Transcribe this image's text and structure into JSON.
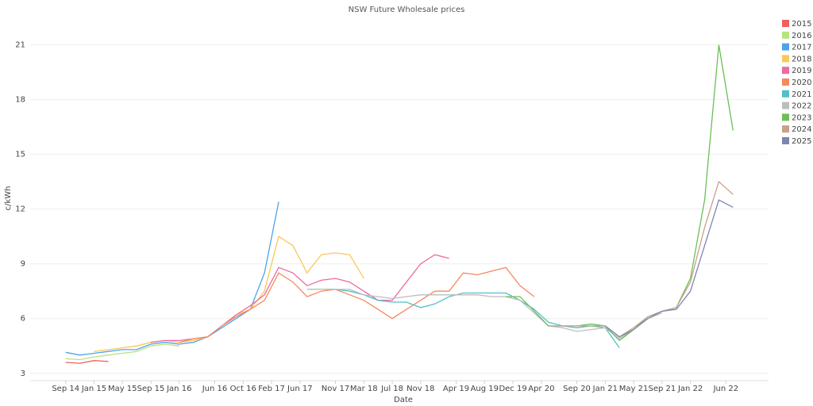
{
  "chart_data": {
    "type": "line",
    "title": "NSW Future Wholesale prices",
    "x_label": "Date",
    "y_label": "c/kWh",
    "x": [
      "2014-09",
      "2014-11",
      "2015-01",
      "2015-03",
      "2015-05",
      "2015-07",
      "2015-09",
      "2015-11",
      "2016-01",
      "2016-03",
      "2016-05",
      "2016-07",
      "2016-09",
      "2016-11",
      "2017-01",
      "2017-03",
      "2017-05",
      "2017-07",
      "2017-09",
      "2017-11",
      "2018-01",
      "2018-03",
      "2018-05",
      "2018-07",
      "2018-09",
      "2018-11",
      "2019-01",
      "2019-03",
      "2019-05",
      "2019-07",
      "2019-09",
      "2019-11",
      "2020-01",
      "2020-03",
      "2020-05",
      "2020-07",
      "2020-09",
      "2020-11",
      "2021-01",
      "2021-03",
      "2021-05",
      "2021-07",
      "2021-09",
      "2021-11",
      "2022-01",
      "2022-03",
      "2022-05",
      "2022-07"
    ],
    "xlim": [
      "2014-04",
      "2022-12"
    ],
    "xticks": [
      {
        "value": "2014-09",
        "label": "Sep 14"
      },
      {
        "value": "2015-01",
        "label": "Jan 15"
      },
      {
        "value": "2015-05",
        "label": "May 15"
      },
      {
        "value": "2015-09",
        "label": "Sep 15"
      },
      {
        "value": "2016-01",
        "label": "Jan 16"
      },
      {
        "value": "2016-06",
        "label": "Jun 16"
      },
      {
        "value": "2016-10",
        "label": "Oct 16"
      },
      {
        "value": "2017-02",
        "label": "Feb 17"
      },
      {
        "value": "2017-06",
        "label": "Jun 17"
      },
      {
        "value": "2017-11",
        "label": "Nov 17"
      },
      {
        "value": "2018-03",
        "label": "Mar 18"
      },
      {
        "value": "2018-07",
        "label": "Jul 18"
      },
      {
        "value": "2018-11",
        "label": "Nov 18"
      },
      {
        "value": "2019-04",
        "label": "Apr 19"
      },
      {
        "value": "2019-08",
        "label": "Aug 19"
      },
      {
        "value": "2019-12",
        "label": "Dec 19"
      },
      {
        "value": "2020-04",
        "label": "Apr 20"
      },
      {
        "value": "2020-09",
        "label": "Sep 20"
      },
      {
        "value": "2021-01",
        "label": "Jan 21"
      },
      {
        "value": "2021-05",
        "label": "May 21"
      },
      {
        "value": "2021-09",
        "label": "Sep 21"
      },
      {
        "value": "2022-01",
        "label": "Jan 22"
      },
      {
        "value": "2022-06",
        "label": "Jun 22"
      }
    ],
    "ylim": [
      2.6,
      22.5
    ],
    "yticks": [
      3,
      6,
      9,
      12,
      15,
      18,
      21
    ],
    "grid": true,
    "series": [
      {
        "name": "2015",
        "color": "#f0605d",
        "values": [
          3.6,
          3.55,
          3.7,
          3.65,
          null,
          null,
          null,
          null,
          null,
          null,
          null,
          null,
          null,
          null,
          null,
          null,
          null,
          null,
          null,
          null,
          null,
          null,
          null,
          null,
          null,
          null,
          null,
          null,
          null,
          null,
          null,
          null,
          null,
          null,
          null,
          null,
          null,
          null,
          null,
          null,
          null,
          null,
          null,
          null,
          null,
          null,
          null,
          null
        ]
      },
      {
        "name": "2016",
        "color": "#b6e37e",
        "values": [
          3.8,
          3.75,
          3.9,
          4.0,
          4.1,
          4.2,
          4.5,
          4.6,
          4.5,
          null,
          null,
          null,
          null,
          null,
          null,
          null,
          null,
          null,
          null,
          null,
          null,
          null,
          null,
          null,
          null,
          null,
          null,
          null,
          null,
          null,
          null,
          null,
          null,
          null,
          null,
          null,
          null,
          null,
          null,
          null,
          null,
          null,
          null,
          null,
          null,
          null,
          null,
          null
        ]
      },
      {
        "name": "2017",
        "color": "#4ca3ea",
        "values": [
          4.15,
          4.0,
          4.1,
          4.2,
          4.3,
          4.3,
          4.6,
          4.7,
          4.6,
          4.7,
          5.0,
          5.5,
          6.0,
          6.5,
          8.5,
          12.4,
          null,
          null,
          null,
          null,
          null,
          null,
          null,
          null,
          null,
          null,
          null,
          null,
          null,
          null,
          null,
          null,
          null,
          null,
          null,
          null,
          null,
          null,
          null,
          null,
          null,
          null,
          null,
          null,
          null,
          null,
          null,
          null
        ]
      },
      {
        "name": "2018",
        "color": "#fdc659",
        "values": [
          null,
          null,
          4.2,
          4.3,
          4.4,
          4.5,
          4.7,
          4.8,
          4.7,
          4.8,
          5.0,
          5.6,
          6.2,
          6.5,
          7.5,
          10.5,
          10.0,
          8.5,
          9.5,
          9.6,
          9.5,
          8.2,
          null,
          null,
          null,
          null,
          null,
          null,
          null,
          null,
          null,
          null,
          null,
          null,
          null,
          null,
          null,
          null,
          null,
          null,
          null,
          null,
          null,
          null,
          null,
          null,
          null,
          null
        ]
      },
      {
        "name": "2019",
        "color": "#ee6aa0",
        "values": [
          null,
          null,
          null,
          null,
          null,
          null,
          4.7,
          4.8,
          4.8,
          4.9,
          5.0,
          5.6,
          6.2,
          6.7,
          7.3,
          8.8,
          8.5,
          7.8,
          8.1,
          8.2,
          8.0,
          7.5,
          7.0,
          7.0,
          8.0,
          9.0,
          9.5,
          9.3,
          null,
          null,
          null,
          null,
          null,
          null,
          null,
          null,
          null,
          null,
          null,
          null,
          null,
          null,
          null,
          null,
          null,
          null,
          null,
          null
        ]
      },
      {
        "name": "2020",
        "color": "#f5895e",
        "values": [
          null,
          null,
          null,
          null,
          null,
          null,
          null,
          null,
          4.7,
          4.9,
          5.0,
          5.6,
          6.1,
          6.5,
          7.0,
          8.5,
          8.0,
          7.2,
          7.5,
          7.6,
          7.3,
          7.0,
          6.5,
          6.0,
          6.5,
          7.0,
          7.5,
          7.5,
          8.5,
          8.4,
          8.6,
          8.8,
          7.8,
          7.2,
          null,
          null,
          null,
          null,
          null,
          null,
          null,
          null,
          null,
          null,
          null,
          null,
          null,
          null
        ]
      },
      {
        "name": "2021",
        "color": "#52bfc9",
        "values": [
          null,
          null,
          null,
          null,
          null,
          null,
          null,
          null,
          null,
          null,
          null,
          null,
          null,
          null,
          null,
          null,
          null,
          7.6,
          7.6,
          7.6,
          7.5,
          7.3,
          7.0,
          6.9,
          6.9,
          6.6,
          6.8,
          7.2,
          7.4,
          7.4,
          7.4,
          7.4,
          7.0,
          6.5,
          5.8,
          5.6,
          5.5,
          5.6,
          5.5,
          4.4,
          null,
          null,
          null,
          null,
          null,
          null,
          null,
          null
        ]
      },
      {
        "name": "2022",
        "color": "#bdbdbd",
        "values": [
          null,
          null,
          null,
          null,
          null,
          null,
          null,
          null,
          null,
          null,
          null,
          null,
          null,
          null,
          null,
          null,
          null,
          7.6,
          7.6,
          7.6,
          7.6,
          7.3,
          7.2,
          7.1,
          7.2,
          7.3,
          7.3,
          7.3,
          7.3,
          7.3,
          7.2,
          7.2,
          7.0,
          6.3,
          5.6,
          5.5,
          5.3,
          5.4,
          5.5,
          4.9,
          5.4,
          6.0,
          6.3,
          null,
          null,
          null,
          null,
          null
        ]
      },
      {
        "name": "2023",
        "color": "#6cbf55",
        "values": [
          null,
          null,
          null,
          null,
          null,
          null,
          null,
          null,
          null,
          null,
          null,
          null,
          null,
          null,
          null,
          null,
          null,
          null,
          null,
          null,
          null,
          null,
          null,
          null,
          null,
          null,
          null,
          null,
          null,
          null,
          null,
          7.2,
          7.2,
          6.4,
          5.6,
          5.6,
          5.6,
          5.7,
          5.6,
          4.8,
          5.4,
          6.1,
          6.4,
          6.6,
          8.2,
          12.5,
          21.0,
          16.3
        ]
      },
      {
        "name": "2024",
        "color": "#c9a08c",
        "values": [
          null,
          null,
          null,
          null,
          null,
          null,
          null,
          null,
          null,
          null,
          null,
          null,
          null,
          null,
          null,
          null,
          null,
          null,
          null,
          null,
          null,
          null,
          null,
          null,
          null,
          null,
          null,
          null,
          null,
          null,
          null,
          null,
          null,
          null,
          5.6,
          5.6,
          5.6,
          5.6,
          5.6,
          5.0,
          5.5,
          6.1,
          6.4,
          6.6,
          8.0,
          11.0,
          13.5,
          12.8
        ]
      },
      {
        "name": "2025",
        "color": "#7d86b0",
        "values": [
          null,
          null,
          null,
          null,
          null,
          null,
          null,
          null,
          null,
          null,
          null,
          null,
          null,
          null,
          null,
          null,
          null,
          null,
          null,
          null,
          null,
          null,
          null,
          null,
          null,
          null,
          null,
          null,
          null,
          null,
          null,
          null,
          null,
          null,
          null,
          null,
          null,
          null,
          5.6,
          5.0,
          5.4,
          6.0,
          6.4,
          6.5,
          7.5,
          10.0,
          12.5,
          12.1
        ]
      }
    ]
  }
}
